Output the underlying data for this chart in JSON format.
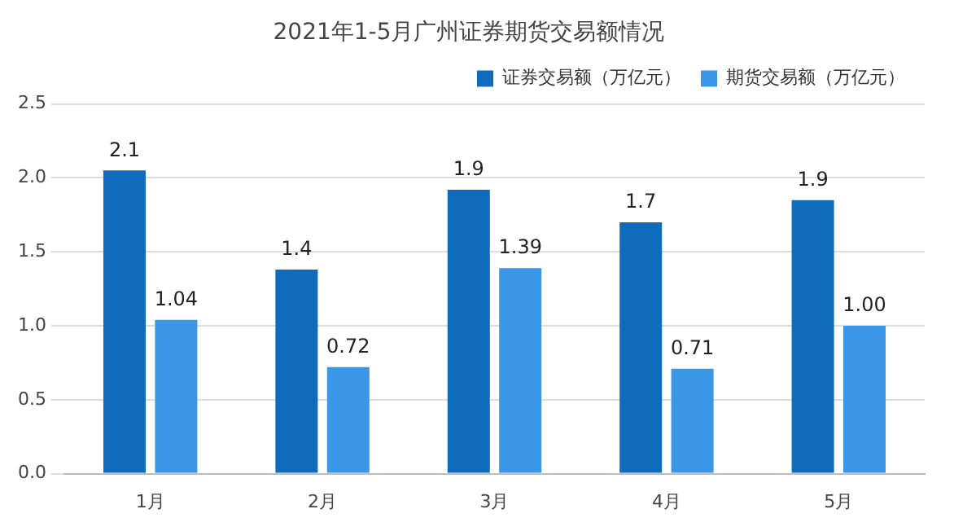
{
  "chart_data": {
    "type": "bar",
    "title": "2021年1-5月广州证券期货交易额情况",
    "categories": [
      "1月",
      "2月",
      "3月",
      "4月",
      "5月"
    ],
    "series": [
      {
        "name": "证券交易额（万亿元）",
        "color": "#0f6cbd",
        "values": [
          2.05,
          1.38,
          1.92,
          1.7,
          1.85
        ],
        "value_labels": [
          "2.1",
          "1.4",
          "1.9",
          "1.7",
          "1.9"
        ]
      },
      {
        "name": "期货交易额（万亿元）",
        "color": "#3a96e6",
        "values": [
          1.04,
          0.72,
          1.39,
          0.71,
          1.0
        ],
        "value_labels": [
          "1.04",
          "0.72",
          "1.39",
          "0.71",
          "1.00"
        ]
      }
    ],
    "ylim": [
      0,
      2.5
    ],
    "yticks": [
      {
        "value": 0,
        "label": "0.0"
      },
      {
        "value": 0.5,
        "label": "0.5"
      },
      {
        "value": 1,
        "label": "1.0"
      },
      {
        "value": 1.5,
        "label": "1.5"
      },
      {
        "value": 2,
        "label": "2.0"
      },
      {
        "value": 2.5,
        "label": "2.5"
      }
    ],
    "grid": "y",
    "legend": "top right"
  }
}
